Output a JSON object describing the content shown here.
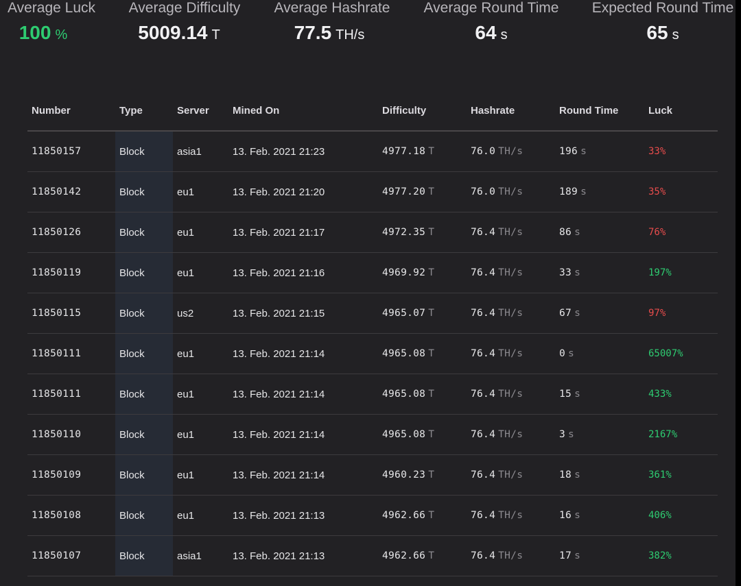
{
  "stats": [
    {
      "label": "Average Luck",
      "value": "100",
      "unit": "%"
    },
    {
      "label": "Average Difficulty",
      "value": "5009.14",
      "unit": "T"
    },
    {
      "label": "Average Hashrate",
      "value": "77.5",
      "unit": "TH/s"
    },
    {
      "label": "Average Round Time",
      "value": "64",
      "unit": "s"
    },
    {
      "label": "Expected Round Time",
      "value": "65",
      "unit": "s"
    }
  ],
  "table": {
    "headers": [
      "Number",
      "Type",
      "Server",
      "Mined On",
      "Difficulty",
      "Hashrate",
      "Round Time",
      "Luck"
    ],
    "units": {
      "difficulty": "T",
      "hashrate": "TH/s",
      "round_time": "s"
    },
    "rows": [
      {
        "number": "11850157",
        "type": "Block",
        "server": "asia1",
        "mined_on": "13. Feb. 2021 21:23",
        "difficulty": "4977.18",
        "hashrate": "76.0",
        "round_time": "196",
        "luck": "33%",
        "luck_status": "bad"
      },
      {
        "number": "11850142",
        "type": "Block",
        "server": "eu1",
        "mined_on": "13. Feb. 2021 21:20",
        "difficulty": "4977.20",
        "hashrate": "76.0",
        "round_time": "189",
        "luck": "35%",
        "luck_status": "bad"
      },
      {
        "number": "11850126",
        "type": "Block",
        "server": "eu1",
        "mined_on": "13. Feb. 2021 21:17",
        "difficulty": "4972.35",
        "hashrate": "76.4",
        "round_time": "86",
        "luck": "76%",
        "luck_status": "bad"
      },
      {
        "number": "11850119",
        "type": "Block",
        "server": "eu1",
        "mined_on": "13. Feb. 2021 21:16",
        "difficulty": "4969.92",
        "hashrate": "76.4",
        "round_time": "33",
        "luck": "197%",
        "luck_status": "good"
      },
      {
        "number": "11850115",
        "type": "Block",
        "server": "us2",
        "mined_on": "13. Feb. 2021 21:15",
        "difficulty": "4965.07",
        "hashrate": "76.4",
        "round_time": "67",
        "luck": "97%",
        "luck_status": "bad"
      },
      {
        "number": "11850111",
        "type": "Block",
        "server": "eu1",
        "mined_on": "13. Feb. 2021 21:14",
        "difficulty": "4965.08",
        "hashrate": "76.4",
        "round_time": "0",
        "luck": "65007%",
        "luck_status": "good"
      },
      {
        "number": "11850111",
        "type": "Block",
        "server": "eu1",
        "mined_on": "13. Feb. 2021 21:14",
        "difficulty": "4965.08",
        "hashrate": "76.4",
        "round_time": "15",
        "luck": "433%",
        "luck_status": "good"
      },
      {
        "number": "11850110",
        "type": "Block",
        "server": "eu1",
        "mined_on": "13. Feb. 2021 21:14",
        "difficulty": "4965.08",
        "hashrate": "76.4",
        "round_time": "3",
        "luck": "2167%",
        "luck_status": "good"
      },
      {
        "number": "11850109",
        "type": "Block",
        "server": "eu1",
        "mined_on": "13. Feb. 2021 21:14",
        "difficulty": "4960.23",
        "hashrate": "76.4",
        "round_time": "18",
        "luck": "361%",
        "luck_status": "good"
      },
      {
        "number": "11850108",
        "type": "Block",
        "server": "eu1",
        "mined_on": "13. Feb. 2021 21:13",
        "difficulty": "4962.66",
        "hashrate": "76.4",
        "round_time": "16",
        "luck": "406%",
        "luck_status": "good"
      },
      {
        "number": "11850107",
        "type": "Block",
        "server": "asia1",
        "mined_on": "13. Feb. 2021 21:13",
        "difficulty": "4962.66",
        "hashrate": "76.4",
        "round_time": "17",
        "luck": "382%",
        "luck_status": "good"
      }
    ]
  },
  "colors": {
    "background": "#222124",
    "good": "#2ecc71",
    "bad": "#e74c4c",
    "type_column": "#262b35"
  }
}
